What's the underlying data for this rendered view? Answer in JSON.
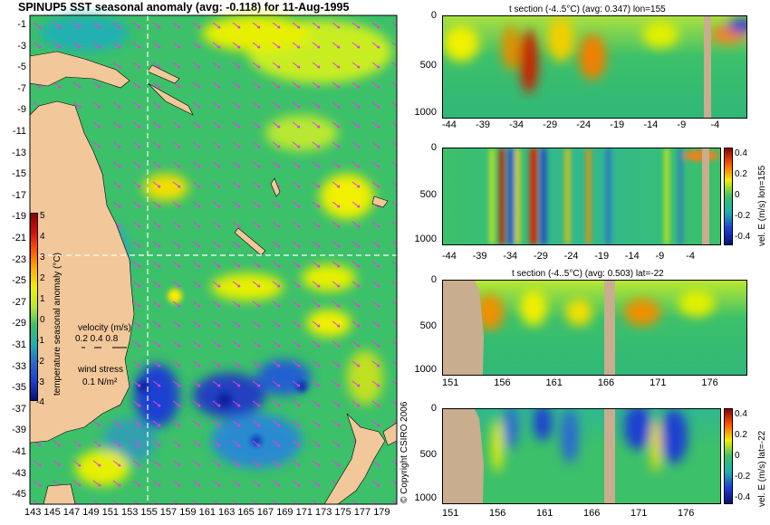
{
  "map": {
    "title": "SPINUP5 SST seasonal anomaly (avg: -0.118) for 11-Aug-1995",
    "lat_labels": [
      "-1",
      "-3",
      "-5",
      "-7",
      "-9",
      "-11",
      "-13",
      "-15",
      "-17",
      "-19",
      "-21",
      "-23",
      "-25",
      "-27",
      "-29",
      "-31",
      "-33",
      "-35",
      "-37",
      "-39",
      "-41",
      "-43",
      "-45"
    ],
    "lon_labels": [
      "143",
      "145",
      "147",
      "149",
      "151",
      "153",
      "155",
      "157",
      "159",
      "161",
      "163",
      "165",
      "167",
      "169",
      "171",
      "173",
      "175",
      "177",
      "179"
    ],
    "colorbar_label": "temperature seasonal anomaly (°C)",
    "colorbar_ticks": [
      "5",
      "4",
      "3",
      "2",
      "1",
      "0",
      "-1",
      "-2",
      "-3",
      "-4"
    ],
    "velocity_label": "velocity (m/s)",
    "velocity_scale": "0.2 0.4 0.8",
    "wind_label": "wind stress",
    "wind_scale": "0.1 N/m²",
    "crosshair": {
      "lon": 155,
      "lat": -22
    },
    "colors": {
      "land": "#f2c79a",
      "ocean_pos": "#e6f000",
      "ocean_neutral": "#3cc06a",
      "ocean_neg": "#1d3fd0",
      "arrows": "#e040e0",
      "crosshair": "#ffffff"
    }
  },
  "panels": [
    {
      "title": "t section (-4..5°C) (avg: 0.347) lon=155",
      "y_ticks": [
        "0",
        "500",
        "1000"
      ],
      "x_ticks": [
        "-44",
        "-39",
        "-34",
        "-29",
        "-24",
        "-19",
        "-14",
        "-9",
        "-4"
      ]
    },
    {
      "title": "",
      "y_ticks": [
        "0",
        "500",
        "1000"
      ],
      "x_ticks": [
        "-44",
        "-39",
        "-34",
        "-29",
        "-24",
        "-19",
        "-14",
        "-9",
        "-4"
      ],
      "cb_label": "vel. E (m/s) lon=155",
      "cb_ticks": [
        "0.4",
        "0.2",
        "0",
        "-0.2",
        "-0.4"
      ]
    },
    {
      "title": "t section (-4..5°C) (avg: 0.503) lat=-22",
      "y_ticks": [
        "0",
        "500",
        "1000"
      ],
      "x_ticks": [
        "151",
        "156",
        "161",
        "166",
        "171",
        "176"
      ]
    },
    {
      "title": "",
      "y_ticks": [
        "0",
        "500",
        "1000"
      ],
      "x_ticks": [
        "151",
        "156",
        "161",
        "166",
        "171",
        "176"
      ],
      "cb_label": "vel. E (m/s) lat=-22",
      "cb_ticks": [
        "0.4",
        "0.2",
        "0",
        "-0.2",
        "-0.4"
      ]
    }
  ],
  "copyright": "© Copyright CSIRO 2006"
}
